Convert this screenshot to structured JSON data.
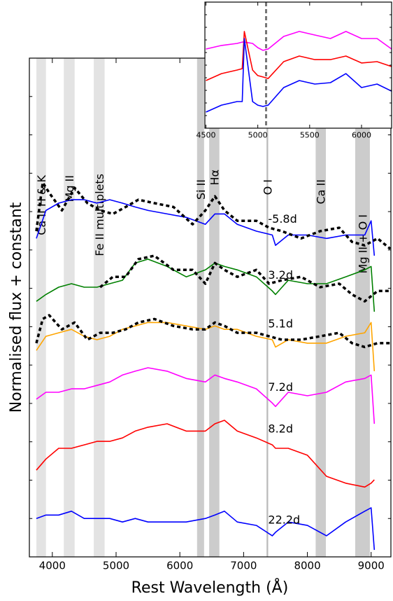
{
  "chart_data": [
    {
      "type": "line",
      "xlabel": "Rest Wavelength (Å)",
      "ylabel": "Normalised flux + constant",
      "xlim": [
        3640,
        9310
      ],
      "xticks": [
        4000,
        5000,
        6000,
        7000,
        8000,
        9000
      ],
      "ylim": [
        0,
        13
      ],
      "yticks": [
        1,
        2,
        3,
        4,
        5,
        6,
        7,
        8,
        9,
        10,
        11,
        12
      ],
      "bands": [
        {
          "label": "Ca II H & K",
          "range": [
            3750,
            3900
          ],
          "color": "#e3e3e3"
        },
        {
          "label": "Mg II",
          "range": [
            4180,
            4350
          ],
          "color": "#e3e3e3"
        },
        {
          "label": "Fe II multiplets",
          "range": [
            4650,
            4820
          ],
          "color": "#e3e3e3"
        },
        {
          "label": "Si II",
          "range": [
            6270,
            6380
          ],
          "color": "#cccccc"
        },
        {
          "label": "Hα",
          "range": [
            6460,
            6620
          ],
          "color": "#cccccc"
        },
        {
          "label": "O I",
          "range": [
            7360,
            7385
          ],
          "color": "#bbbbbb"
        },
        {
          "label": "Ca II",
          "range": [
            8130,
            8290
          ],
          "color": "#cccccc"
        },
        {
          "label": "Mg II + O I",
          "range": [
            8750,
            8980
          ],
          "color": "#cccccc"
        }
      ],
      "x": [
        3750,
        3900,
        4100,
        4300,
        4500,
        4700,
        4900,
        5100,
        5300,
        5500,
        5800,
        6100,
        6400,
        6550,
        6700,
        6900,
        7200,
        7450,
        7500,
        7700,
        8000,
        8300,
        8600,
        8900,
        9000,
        9050
      ],
      "series": [
        {
          "name": "-5.8d",
          "color": "#0000ff",
          "values": [
            8.3,
            9.03,
            9.22,
            9.31,
            9.31,
            9.22,
            9.31,
            9.22,
            9.12,
            9.03,
            8.94,
            8.85,
            8.67,
            8.94,
            8.94,
            8.67,
            8.49,
            8.39,
            8.12,
            8.39,
            8.39,
            8.3,
            8.39,
            8.39,
            8.76,
            7.85
          ]
        },
        {
          "name": "3.2d",
          "color": "#008000",
          "values": [
            6.66,
            6.84,
            7.03,
            7.12,
            7.03,
            7.03,
            7.12,
            7.21,
            7.66,
            7.76,
            7.57,
            7.3,
            7.48,
            7.66,
            7.57,
            7.48,
            7.3,
            6.93,
            6.84,
            7.21,
            7.12,
            7.12,
            7.3,
            7.48,
            7.57,
            6.39
          ]
        },
        {
          "name": "5.1d",
          "color": "#ffa500",
          "values": [
            5.38,
            5.75,
            5.84,
            5.93,
            5.75,
            5.66,
            5.75,
            5.93,
            6.02,
            6.11,
            6.11,
            6.02,
            5.93,
            6.02,
            5.93,
            5.93,
            5.75,
            5.66,
            5.47,
            5.66,
            5.57,
            5.57,
            5.75,
            5.84,
            6.11,
            4.84
          ]
        },
        {
          "name": "7.2d",
          "color": "#ff00ff",
          "values": [
            4.11,
            4.29,
            4.29,
            4.38,
            4.38,
            4.47,
            4.56,
            4.74,
            4.84,
            4.93,
            4.84,
            4.65,
            4.56,
            4.74,
            4.65,
            4.56,
            4.38,
            4.01,
            3.92,
            4.29,
            4.2,
            4.29,
            4.56,
            4.65,
            4.74,
            3.47
          ]
        },
        {
          "name": "8.2d",
          "color": "#ff0000",
          "values": [
            2.26,
            2.55,
            2.83,
            2.83,
            2.92,
            3.01,
            3.01,
            3.1,
            3.28,
            3.38,
            3.47,
            3.28,
            3.28,
            3.47,
            3.56,
            3.28,
            3.1,
            2.92,
            2.83,
            2.83,
            2.65,
            2.1,
            1.92,
            1.82,
            1.92,
            2.01
          ]
        },
        {
          "name": "22.2d",
          "color": "#0000ff",
          "values": [
            1.0,
            1.09,
            1.09,
            1.19,
            1.0,
            1.0,
            1.0,
            0.91,
            1.0,
            0.91,
            0.91,
            0.91,
            1.0,
            1.09,
            1.19,
            0.91,
            0.82,
            0.55,
            0.64,
            0.91,
            0.82,
            0.55,
            0.91,
            1.19,
            1.28,
            0.18
          ]
        },
        {
          "color": "#000000",
          "style": "dotted",
          "x": [
            3750,
            3850,
            3950,
            4150,
            4350,
            4550,
            4750,
            4950,
            5150,
            5350,
            5600,
            5900,
            6200,
            6400,
            6550,
            6700,
            6900,
            7200,
            7400,
            7600,
            7900,
            8200,
            8500,
            8700,
            8900,
            9100,
            9300
          ],
          "values": [
            8.49,
            9.76,
            9.49,
            9.03,
            9.62,
            9.22,
            9.03,
            8.94,
            9.12,
            9.31,
            9.22,
            9.12,
            8.67,
            9.03,
            9.4,
            9.03,
            8.76,
            8.76,
            8.58,
            8.49,
            8.3,
            8.49,
            8.58,
            8.21,
            8.12,
            8.3,
            8.03
          ]
        },
        {
          "color": "#000000",
          "style": "dotted",
          "x": [
            3750,
            3850,
            3950,
            4150,
            4350,
            4550,
            4750,
            4950,
            5150,
            5350,
            5600,
            5900,
            6200,
            6400,
            6550,
            6700,
            6900,
            7200,
            7400,
            7600,
            7900,
            8200,
            8500,
            8700,
            8900,
            9100,
            9300
          ],
          "values": [
            null,
            null,
            null,
            null,
            null,
            null,
            7.03,
            7.3,
            7.3,
            7.76,
            7.85,
            7.48,
            7.48,
            7.12,
            7.66,
            7.48,
            7.3,
            7.48,
            7.12,
            7.21,
            7.3,
            7.03,
            7.12,
            6.84,
            6.66,
            6.93,
            6.93
          ]
        },
        {
          "color": "#000000",
          "style": "dotted",
          "x": [
            3750,
            3850,
            3950,
            4150,
            4350,
            4550,
            4750,
            4950,
            5150,
            5350,
            5600,
            5900,
            6200,
            6400,
            6550,
            6700,
            6900,
            7200,
            7400,
            7600,
            7900,
            8200,
            8500,
            8700,
            8900,
            9100,
            9300
          ],
          "values": [
            5.57,
            6.2,
            6.3,
            5.93,
            6.11,
            5.66,
            5.84,
            5.84,
            5.93,
            6.11,
            6.2,
            6.02,
            5.93,
            5.93,
            6.11,
            6.02,
            5.84,
            5.84,
            5.75,
            5.66,
            5.66,
            5.75,
            5.84,
            5.57,
            5.47,
            5.57,
            5.57
          ]
        }
      ]
    },
    {
      "type": "line",
      "xlim": [
        4490,
        6290
      ],
      "xticks": [
        4500,
        5000,
        5500,
        6000
      ],
      "ylim": [
        0,
        10
      ],
      "yticks": [
        1,
        2,
        3,
        4,
        5,
        6,
        7,
        8,
        9
      ],
      "vline": 5080,
      "x": [
        4500,
        4650,
        4800,
        4850,
        4870,
        4950,
        5000,
        5050,
        5100,
        5250,
        5400,
        5550,
        5700,
        5850,
        6000,
        6150,
        6290
      ],
      "series": [
        {
          "color": "#ff00ff",
          "values": [
            6.28,
            6.56,
            6.72,
            6.83,
            6.83,
            6.72,
            6.39,
            6.17,
            6.28,
            7.28,
            7.67,
            7.39,
            7.11,
            7.67,
            7.11,
            7.11,
            6.28
          ]
        },
        {
          "color": "#ff0000",
          "values": [
            3.78,
            4.33,
            4.61,
            4.72,
            7.67,
            4.61,
            4.17,
            4.06,
            3.94,
            5.28,
            5.72,
            5.44,
            5.44,
            5.72,
            5.17,
            5.28,
            4.89
          ]
        },
        {
          "color": "#0000ff",
          "values": [
            1.28,
            1.83,
            2.11,
            2.11,
            7.11,
            2.11,
            1.83,
            1.72,
            1.83,
            3.22,
            3.78,
            3.5,
            3.61,
            4.33,
            3.22,
            3.5,
            2.94
          ]
        }
      ]
    }
  ]
}
